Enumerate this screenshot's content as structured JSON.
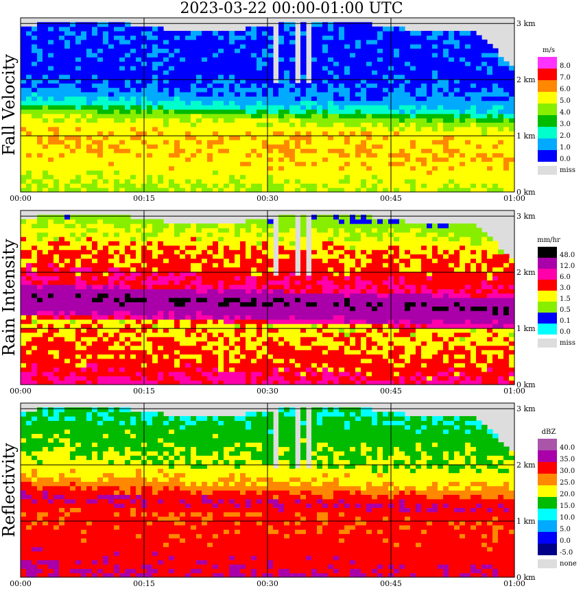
{
  "title": "2023-03-22   00:00-01:00 UTC",
  "time_ticks": [
    "00:00",
    "00:15",
    "00:30",
    "00:45",
    "01:00"
  ],
  "height_ticks": [
    "0 km",
    "1 km",
    "2 km",
    "3 km"
  ],
  "missing_gaps_minutes": [
    [
      30.6,
      31.2
    ],
    [
      33.5,
      34.1
    ],
    [
      35.0,
      35.6
    ]
  ],
  "chart_data": [
    {
      "type": "heatmap",
      "ylabel": "Fall Velocity",
      "unit": "m/s",
      "x_range": [
        "00:00",
        "01:00"
      ],
      "y_range_km": [
        0,
        3.1
      ],
      "legend_labels": [
        "8.0",
        "7.0",
        "6.0",
        "5.0",
        "4.0",
        "3.0",
        "2.0",
        "1.0",
        "0.0"
      ],
      "legend_colors": [
        "#ff33ff",
        "#ff0000",
        "#ff8800",
        "#ffff00",
        "#88ee00",
        "#00bb00",
        "#00ffcc",
        "#00aaff",
        "#0000ff"
      ],
      "missing_label": "miss",
      "profile": [
        {
          "z_km": 0.0,
          "value": 4.6
        },
        {
          "z_km": 0.4,
          "value": 5.4
        },
        {
          "z_km": 0.8,
          "value": 5.9
        },
        {
          "z_km": 1.2,
          "value": 5.7
        },
        {
          "z_km": 1.45,
          "value": 4.5
        },
        {
          "z_km": 1.6,
          "value": 2.5
        },
        {
          "z_km": 1.8,
          "value": 1.3
        },
        {
          "z_km": 2.2,
          "value": 0.6
        },
        {
          "z_km": 2.6,
          "value": 0.7
        },
        {
          "z_km": 3.1,
          "value": 0.8
        }
      ],
      "melting_layer_km": [
        1.55,
        1.32
      ]
    },
    {
      "type": "heatmap",
      "ylabel": "Rain Intensity",
      "unit": "mm/hr",
      "x_range": [
        "00:00",
        "01:00"
      ],
      "y_range_km": [
        0,
        3.1
      ],
      "legend_labels": [
        "48.0",
        "12.0",
        "6.0",
        "3.0",
        "1.5",
        "0.5",
        "0.1",
        "0.0"
      ],
      "legend_colors": [
        "#000000",
        "#aa00aa",
        "#ff00aa",
        "#ff0000",
        "#ffff00",
        "#88ee00",
        "#0000ff",
        "#00ffff"
      ],
      "missing_label": "miss",
      "profile": [
        {
          "z_km": 0.0,
          "value": 8.0
        },
        {
          "z_km": 0.4,
          "value": 4.5
        },
        {
          "z_km": 0.8,
          "value": 3.0
        },
        {
          "z_km": 1.2,
          "value": 2.4
        },
        {
          "z_km": 1.45,
          "value": 30
        },
        {
          "z_km": 1.6,
          "value": 48
        },
        {
          "z_km": 1.8,
          "value": 6.5
        },
        {
          "z_km": 2.2,
          "value": 4.0
        },
        {
          "z_km": 2.6,
          "value": 2.5
        },
        {
          "z_km": 3.1,
          "value": 0.5
        }
      ],
      "melting_layer_km": [
        1.55,
        1.32
      ]
    },
    {
      "type": "heatmap",
      "ylabel": "Reflectivity",
      "unit": "dBZ",
      "x_range": [
        "00:00",
        "01:00"
      ],
      "y_range_km": [
        0,
        3.1
      ],
      "legend_labels": [
        "40.0",
        "35.0",
        "30.0",
        "25.0",
        "20.0",
        "15.0",
        "10.0",
        "5.0",
        "0.0",
        "-5.0"
      ],
      "legend_colors": [
        "#aa55aa",
        "#aa00aa",
        "#ff0000",
        "#ff8800",
        "#ffff00",
        "#00bb00",
        "#00ffff",
        "#00aaff",
        "#0000ff",
        "#000088"
      ],
      "missing_label": "none",
      "profile": [
        {
          "z_km": 0.0,
          "value": 36
        },
        {
          "z_km": 0.4,
          "value": 33
        },
        {
          "z_km": 0.8,
          "value": 32
        },
        {
          "z_km": 1.2,
          "value": 31
        },
        {
          "z_km": 1.45,
          "value": 35
        },
        {
          "z_km": 1.6,
          "value": 31
        },
        {
          "z_km": 1.8,
          "value": 25
        },
        {
          "z_km": 2.2,
          "value": 20
        },
        {
          "z_km": 2.6,
          "value": 18
        },
        {
          "z_km": 3.1,
          "value": 15
        }
      ],
      "melting_layer_km": [
        1.55,
        1.32
      ]
    }
  ]
}
